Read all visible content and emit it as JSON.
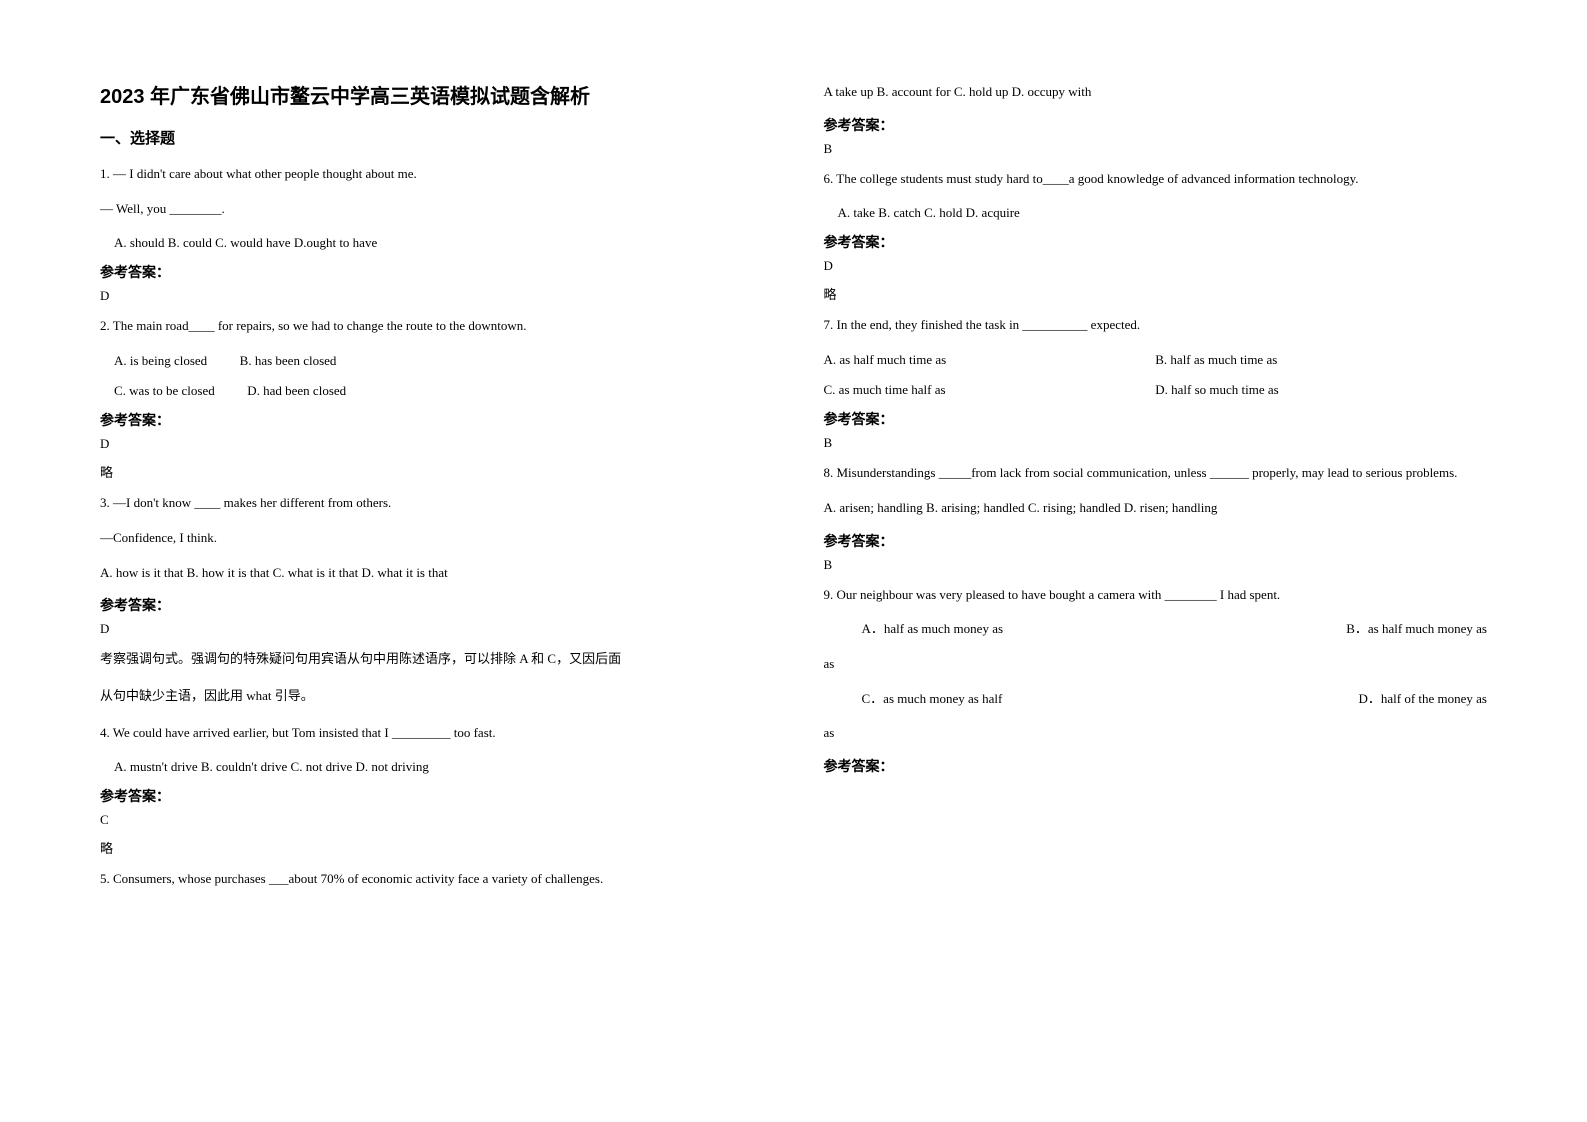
{
  "title": "2023 年广东省佛山市鳌云中学高三英语模拟试题含解析",
  "section1": "一、选择题",
  "answer_label": "参考答案：",
  "omit": "略",
  "left": {
    "q1": {
      "line1": "1. — I didn't care about what other people thought about me.",
      "line2": "— Well, you ________.",
      "opts": "A. should    B. could    C. would have   D.ought to have",
      "ans": "D"
    },
    "q2": {
      "stem": "2. The main road____ for repairs, so we had to change the route to the downtown.",
      "optA": "A. is being closed",
      "optB": "B. has been closed",
      "optC": "C. was to be closed",
      "optD": "D. had been closed",
      "ans": "D"
    },
    "q3": {
      "line1": "3. —I don't know ____ makes her different from others.",
      "line2": "—Confidence, I think.",
      "opts": "A. how is it that     B. how it is that     C. what is it that    D. what it is that",
      "ans": "D",
      "explain1": "考察强调句式。强调句的特殊疑问句用宾语从句中用陈述语序，可以排除 A 和 C，又因后面",
      "explain2": "从句中缺少主语，因此用 what 引导。"
    },
    "q4": {
      "stem": "4. We could have arrived earlier, but Tom insisted that I _________ too fast.",
      "opts": "A. mustn't drive    B. couldn't drive    C. not drive    D. not driving",
      "ans": "C"
    },
    "q5": {
      "stem": "5. Consumers, whose  purchases ___about 70% of economic activity face a variety of challenges."
    }
  },
  "right": {
    "q5opts": "A take up   B. account for          C.          hold up D. occupy with",
    "q5ans": "B",
    "q6": {
      "stem": "6. The college students must study hard to____a good knowledge of advanced information technology.",
      "opts": "A. take         B. catch          C. hold             D. acquire",
      "ans": "D"
    },
    "q7": {
      "stem": "7. In the end, they finished the task in __________ expected.",
      "optA": "A. as half much time as",
      "optB": "B. half as much time as",
      "optC": "C. as much time half as",
      "optD": "D. half so much time as",
      "ans": "B"
    },
    "q8": {
      "stem": "8. Misunderstandings _____from lack from social communication, unless ______ properly, may lead to serious problems.",
      "opts": "A. arisen; handling    B. arising; handled     C. rising; handled    D. risen; handling",
      "ans": "B"
    },
    "q9": {
      "stem": "9. Our neighbour was very pleased to have bought a camera with ________ I had spent.",
      "optA": "A．half as much money as",
      "optB": "B．as half much money as",
      "optC": "C．as much money as half",
      "optD": "D．half of the money as"
    }
  }
}
